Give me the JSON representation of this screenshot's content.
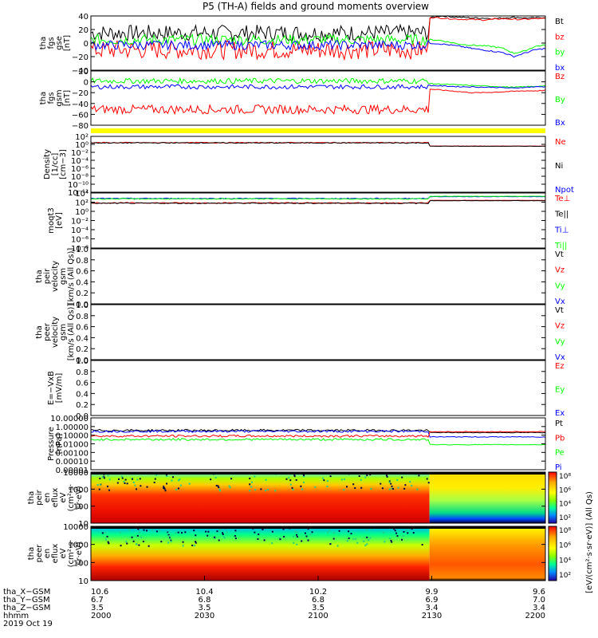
{
  "title": "P5 (TH-A) fields and ground moments overview",
  "colors": {
    "black": "#000000",
    "red": "#ff0000",
    "green": "#00ff00",
    "blue": "#0000ff",
    "yellow": "#ffff00"
  },
  "chart_data": [
    {
      "type": "line",
      "panel": "fgs_gse_low",
      "ylabel_lines": [
        "tha",
        "fgs",
        "gse",
        "[nT]"
      ],
      "yticks": [
        "40",
        "20",
        "0",
        "−20",
        "−40"
      ],
      "ylim": [
        -40,
        40
      ],
      "legend": [
        {
          "name": "Bt",
          "color": "#000000"
        },
        {
          "name": "bz",
          "color": "#ff0000"
        },
        {
          "name": "by",
          "color": "#00ff00"
        },
        {
          "name": "bx",
          "color": "#0000ff"
        }
      ],
      "series": [
        {
          "name": "Bt",
          "before": {
            "mean": 15,
            "amp": 12,
            "lo": 0
          },
          "after": [
            37,
            40,
            39,
            38,
            37,
            37,
            36,
            37,
            38,
            37,
            37,
            38
          ]
        },
        {
          "name": "bz",
          "before": {
            "mean": -10,
            "amp": 14
          },
          "after": [
            38,
            37,
            36,
            35,
            35,
            34,
            35,
            36,
            35,
            35,
            36,
            36
          ]
        },
        {
          "name": "by",
          "before": {
            "mean": 5,
            "amp": 8
          },
          "after": [
            5,
            4,
            1,
            -2,
            -3,
            -4,
            -5,
            -8,
            -15,
            -12,
            -5,
            -3
          ]
        },
        {
          "name": "bx",
          "before": {
            "mean": -3,
            "amp": 7
          },
          "after": [
            0,
            -1,
            -3,
            -5,
            -8,
            -10,
            -12,
            -14,
            -20,
            -15,
            -10,
            -8
          ]
        }
      ]
    },
    {
      "type": "line",
      "panel": "fgs_gsm",
      "ylabel_lines": [
        "tha",
        "fgs",
        "gsm",
        "[nT]"
      ],
      "yticks": [
        "20",
        "0",
        "−20",
        "−40",
        "−60",
        "−80"
      ],
      "ylim": [
        -90,
        30
      ],
      "legend": [
        {
          "name": "Bz",
          "color": "#ff0000"
        },
        {
          "name": "By",
          "color": "#00ff00"
        },
        {
          "name": "Bx",
          "color": "#0000ff"
        }
      ],
      "series": [
        {
          "name": "Bz",
          "before": {
            "mean": -55,
            "amp": 10
          },
          "after": [
            -10,
            -12,
            -14,
            -16,
            -18,
            -18,
            -17,
            -16,
            -15,
            -14,
            -14,
            -13
          ]
        },
        {
          "name": "By",
          "before": {
            "mean": 8,
            "amp": 6
          },
          "after": [
            2,
            1,
            0,
            -1,
            -2,
            -3,
            -4,
            -5,
            -6,
            -5,
            -4,
            -3
          ]
        },
        {
          "name": "Bx",
          "before": {
            "mean": -5,
            "amp": 5
          },
          "after": [
            -2,
            -3,
            -4,
            -5,
            -5,
            -6,
            -6,
            -7,
            -8,
            -6,
            -5,
            -5
          ]
        }
      ]
    },
    {
      "type": "line",
      "panel": "density",
      "ylabel_lines": [
        "Density",
        "[1/cc]",
        "[cm−3]"
      ],
      "yscale": "log",
      "yticks": [
        "10²",
        "10⁰",
        "10⁻²",
        "10⁻⁴",
        "10⁻⁶",
        "10⁻⁸",
        "10⁻¹⁰",
        "10⁻¹²"
      ],
      "ylim_exp": [
        -13,
        2
      ],
      "legend": [
        {
          "name": "Ne",
          "color": "#ff0000"
        },
        {
          "name": "Ni",
          "color": "#000000"
        },
        {
          "name": "Npot",
          "color": "#0000ff"
        }
      ],
      "series": [
        {
          "name": "Ne",
          "before_exp": 0.3,
          "after_exp": -0.6
        },
        {
          "name": "Ni",
          "before_exp": 0.25,
          "after_exp": -0.65
        }
      ]
    },
    {
      "type": "line",
      "panel": "moms_temp",
      "ylabel_lines": [
        "moqt3",
        "[eV]"
      ],
      "yscale": "log",
      "yticks": [
        "10⁴",
        "10²",
        "10⁰",
        "10⁻²",
        "10⁻⁴",
        "10⁻⁶",
        "10⁻⁸"
      ],
      "ylim_exp": [
        -10,
        5
      ],
      "legend": [
        {
          "name": "Te⊥",
          "color": "#ff0000"
        },
        {
          "name": "Te||",
          "color": "#000000"
        },
        {
          "name": "Ti⊥",
          "color": "#0000ff"
        },
        {
          "name": "Ti||",
          "color": "#00ff00"
        }
      ],
      "series": [
        {
          "name": "Te⊥",
          "before_exp": 2.3,
          "after_exp": 3.0
        },
        {
          "name": "Te||",
          "before_exp": 2.2,
          "after_exp": 2.9
        },
        {
          "name": "Ti⊥",
          "before_exp": 3.5,
          "after_exp": 4.0
        },
        {
          "name": "Ti||",
          "before_exp": 3.4,
          "after_exp": 4.1
        }
      ]
    },
    {
      "type": "line",
      "panel": "peir_velocity",
      "ylabel_lines": [
        "tha",
        "peir",
        "velocity",
        "gsm",
        "[km/s (All Qs)]"
      ],
      "yticks": [
        "1.0",
        "0.8",
        "0.6",
        "0.4",
        "0.2",
        "0.0"
      ],
      "ylim": [
        0,
        1
      ],
      "legend": [
        {
          "name": "Vt",
          "color": "#000000"
        },
        {
          "name": "Vz",
          "color": "#ff0000"
        },
        {
          "name": "Vy",
          "color": "#00ff00"
        },
        {
          "name": "Vx",
          "color": "#0000ff"
        }
      ],
      "series": []
    },
    {
      "type": "line",
      "panel": "peer_velocity",
      "ylabel_lines": [
        "tha",
        "peer",
        "velocity",
        "gsm",
        "[km/s (All Qs)]"
      ],
      "yticks": [
        "1.0",
        "0.8",
        "0.6",
        "0.4",
        "0.2",
        "0.0"
      ],
      "ylim": [
        0,
        1
      ],
      "legend": [
        {
          "name": "Vt",
          "color": "#000000"
        },
        {
          "name": "Vz",
          "color": "#ff0000"
        },
        {
          "name": "Vy",
          "color": "#00ff00"
        },
        {
          "name": "Vx",
          "color": "#0000ff"
        }
      ],
      "series": []
    },
    {
      "type": "line",
      "panel": "efield",
      "ylabel_lines": [
        "E=−VxB",
        "[mV/m]"
      ],
      "yticks": [
        "1.0",
        "0.8",
        "0.6",
        "0.4",
        "0.2",
        "0.0"
      ],
      "ylim": [
        0,
        1
      ],
      "legend": [
        {
          "name": "Ez",
          "color": "#ff0000"
        },
        {
          "name": "Ey",
          "color": "#00ff00"
        },
        {
          "name": "Ex",
          "color": "#0000ff"
        }
      ],
      "series": []
    },
    {
      "type": "line",
      "panel": "pressure",
      "ylabel_lines": [
        "Pressure",
        "[nPa]"
      ],
      "yscale": "log",
      "yticks": [
        "10.00000",
        "1.00000",
        "0.10000",
        "0.01000",
        "0.00100",
        "0.00010",
        "0.00001"
      ],
      "ylim_exp": [
        -5,
        1
      ],
      "legend": [
        {
          "name": "Pt",
          "color": "#000000"
        },
        {
          "name": "Pb",
          "color": "#ff0000"
        },
        {
          "name": "Pe",
          "color": "#00ff00"
        },
        {
          "name": "Pi",
          "color": "#0000ff"
        }
      ],
      "series": [
        {
          "name": "Pt",
          "before_exp": -0.45,
          "after_exp": -0.7
        },
        {
          "name": "Pi",
          "before_exp": -0.55,
          "after_exp": -1.2
        },
        {
          "name": "Pb",
          "before_exp": -1.1,
          "after_exp": -0.6
        },
        {
          "name": "Pe",
          "before_exp": -1.5,
          "after_exp": -2.1
        }
      ]
    },
    {
      "type": "heatmap",
      "panel": "peir_eflux",
      "ylabel_lines": [
        "tha",
        "peir",
        "en",
        "eflux",
        "eV",
        "(cm²·s·",
        "sr·eV)"
      ],
      "yscale": "log",
      "yticks": [
        "10000",
        "1000",
        "100",
        "10"
      ]
    },
    {
      "type": "heatmap",
      "panel": "peer_eflux",
      "ylabel_lines": [
        "tha",
        "peer",
        "en",
        "eflux",
        "eV",
        "(cm²·s·",
        "sr·eV)"
      ],
      "yscale": "log",
      "yticks": [
        "10000",
        "1000",
        "100",
        "10"
      ]
    }
  ],
  "colorbar": {
    "label": "[eV/(cm²·s·sr·eV)] (All Qs)",
    "ticks": [
      "10⁸",
      "10⁶",
      "10⁴",
      "10²"
    ]
  },
  "x_axis": {
    "row_labels": [
      "tha_X−GSM",
      "tha_Y−GSM",
      "tha_Z−GSM",
      "hhmm",
      "2019 Oct 19"
    ],
    "ticks": [
      {
        "x": "10.6",
        "y": "6.7",
        "z": "3.5",
        "t": "2000"
      },
      {
        "x": "10.4",
        "y": "6.8",
        "z": "3.5",
        "t": "2030"
      },
      {
        "x": "10.2",
        "y": "6.8",
        "z": "3.5",
        "t": "2100"
      },
      {
        "x": "9.9",
        "y": "6.9",
        "z": "3.4",
        "t": "2130"
      },
      {
        "x": "9.6",
        "y": "7.0",
        "z": "3.4",
        "t": "2200"
      }
    ]
  }
}
